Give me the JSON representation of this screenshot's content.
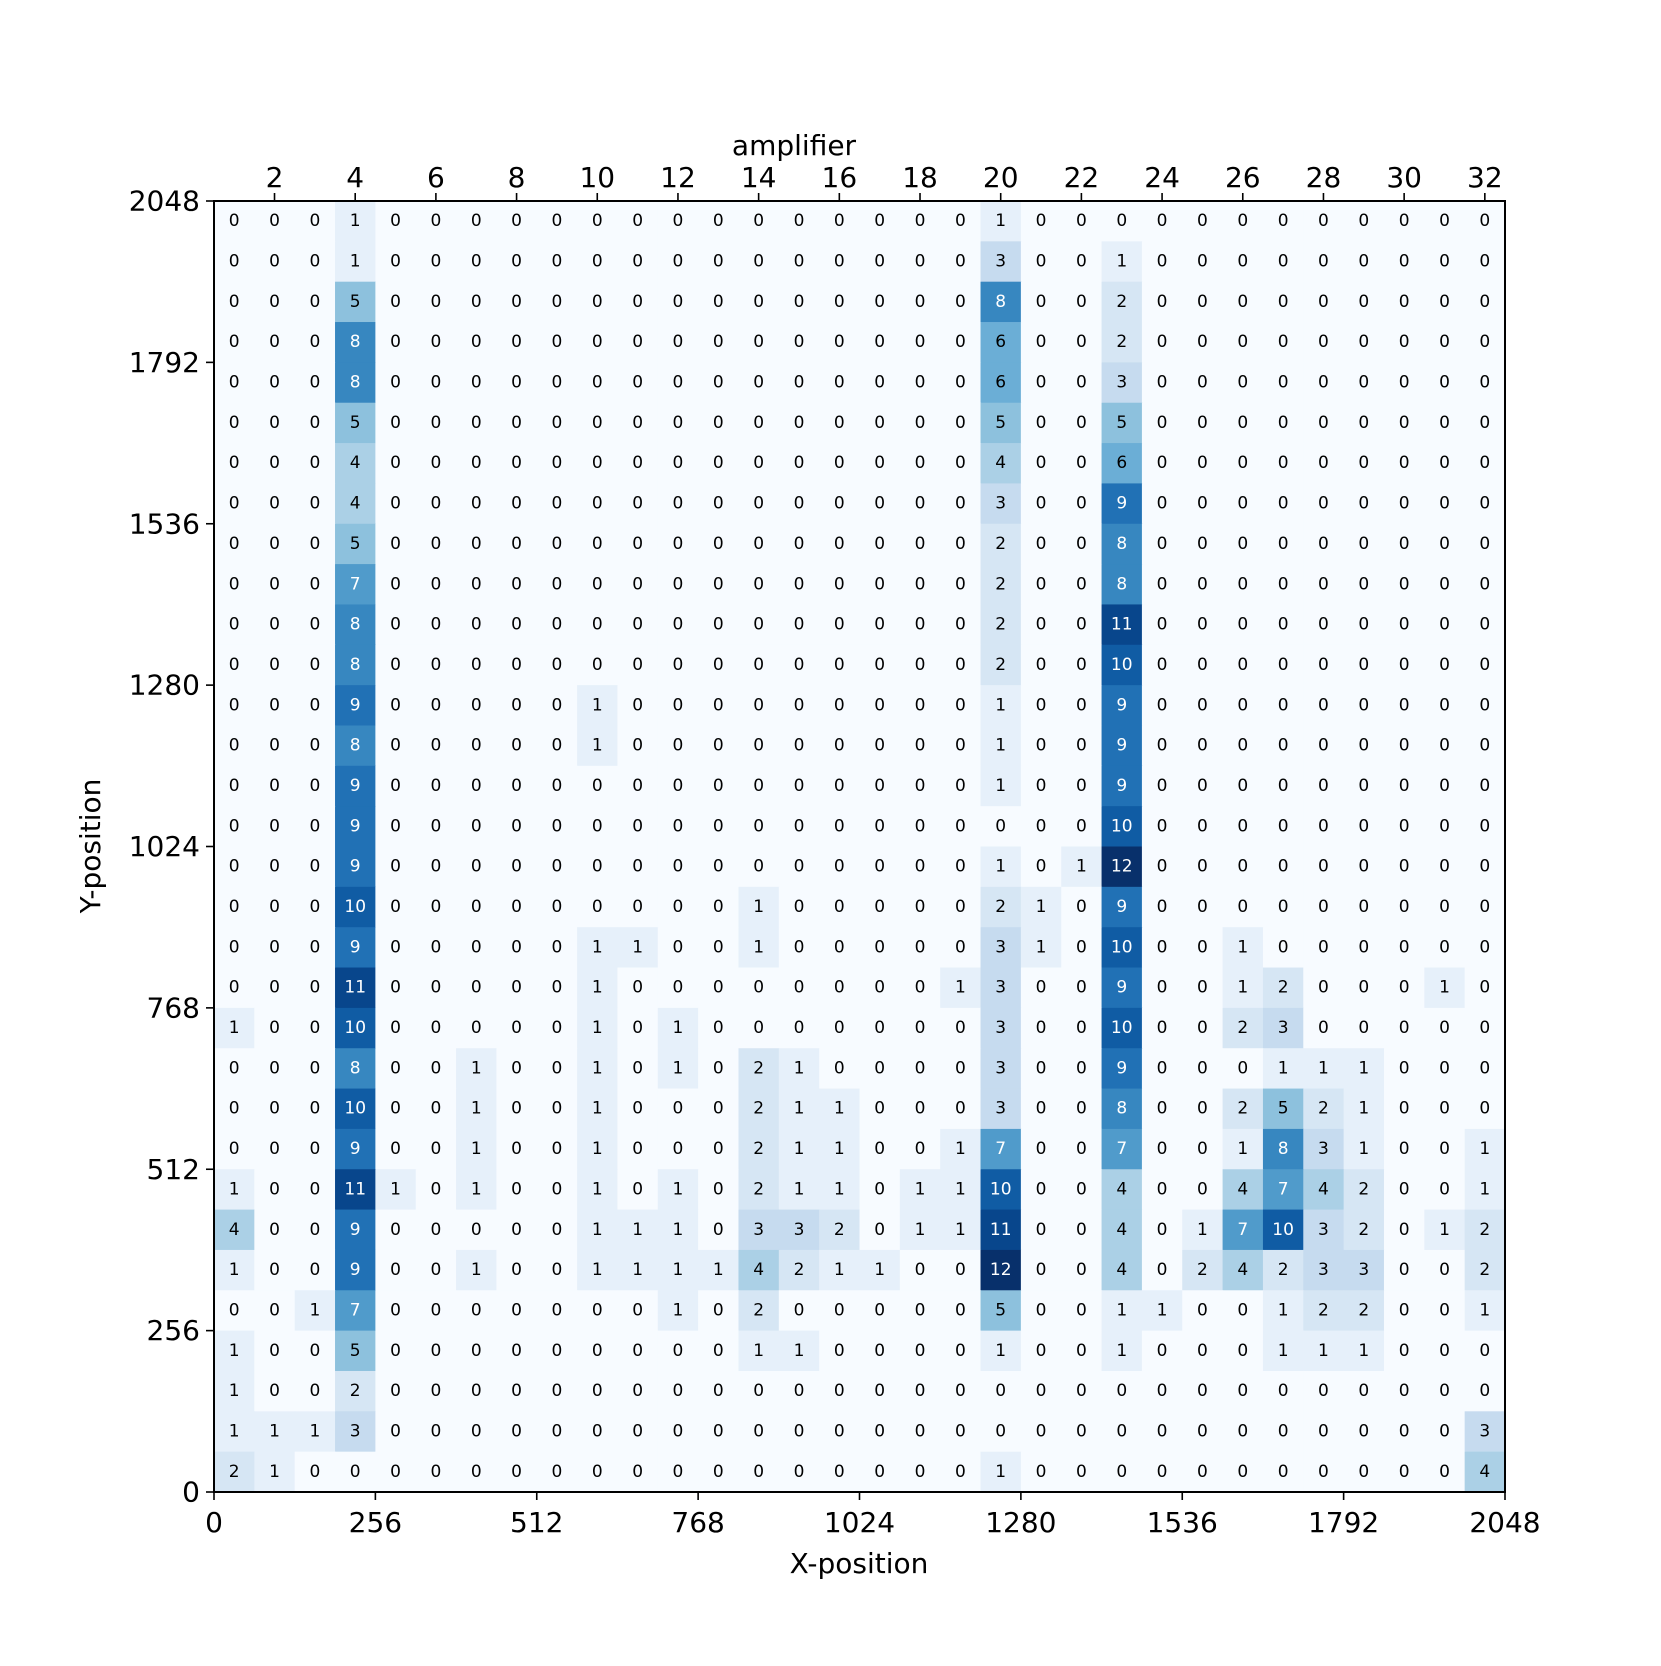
{
  "chart_data": {
    "type": "heatmap",
    "title": "",
    "top_axis_label": "amplifier",
    "xlabel": "X-position",
    "ylabel": "Y-position",
    "xlim": [
      0,
      2048
    ],
    "ylim": [
      0,
      2048
    ],
    "x_ticks": [
      "0",
      "256",
      "512",
      "768",
      "1024",
      "1280",
      "1536",
      "1792",
      "2048"
    ],
    "y_ticks": [
      "0",
      "256",
      "512",
      "768",
      "1024",
      "1280",
      "1536",
      "1792",
      "2048"
    ],
    "top_ticks": [
      "2",
      "4",
      "6",
      "8",
      "10",
      "12",
      "14",
      "16",
      "18",
      "20",
      "22",
      "24",
      "26",
      "28",
      "30",
      "32"
    ],
    "colormap": "Blues",
    "grid": false,
    "n_cols": 32,
    "n_rows": 32,
    "rows_top_to_bottom": [
      [
        0,
        0,
        0,
        1,
        0,
        0,
        0,
        0,
        0,
        0,
        0,
        0,
        0,
        0,
        0,
        0,
        0,
        0,
        0,
        1,
        0,
        0,
        0,
        0,
        0,
        0,
        0,
        0,
        0,
        0,
        0,
        0
      ],
      [
        0,
        0,
        0,
        1,
        0,
        0,
        0,
        0,
        0,
        0,
        0,
        0,
        0,
        0,
        0,
        0,
        0,
        0,
        0,
        3,
        0,
        0,
        1,
        0,
        0,
        0,
        0,
        0,
        0,
        0,
        0,
        0
      ],
      [
        0,
        0,
        0,
        5,
        0,
        0,
        0,
        0,
        0,
        0,
        0,
        0,
        0,
        0,
        0,
        0,
        0,
        0,
        0,
        8,
        0,
        0,
        2,
        0,
        0,
        0,
        0,
        0,
        0,
        0,
        0,
        0
      ],
      [
        0,
        0,
        0,
        8,
        0,
        0,
        0,
        0,
        0,
        0,
        0,
        0,
        0,
        0,
        0,
        0,
        0,
        0,
        0,
        6,
        0,
        0,
        2,
        0,
        0,
        0,
        0,
        0,
        0,
        0,
        0,
        0
      ],
      [
        0,
        0,
        0,
        8,
        0,
        0,
        0,
        0,
        0,
        0,
        0,
        0,
        0,
        0,
        0,
        0,
        0,
        0,
        0,
        6,
        0,
        0,
        3,
        0,
        0,
        0,
        0,
        0,
        0,
        0,
        0,
        0
      ],
      [
        0,
        0,
        0,
        5,
        0,
        0,
        0,
        0,
        0,
        0,
        0,
        0,
        0,
        0,
        0,
        0,
        0,
        0,
        0,
        5,
        0,
        0,
        5,
        0,
        0,
        0,
        0,
        0,
        0,
        0,
        0,
        0
      ],
      [
        0,
        0,
        0,
        4,
        0,
        0,
        0,
        0,
        0,
        0,
        0,
        0,
        0,
        0,
        0,
        0,
        0,
        0,
        0,
        4,
        0,
        0,
        6,
        0,
        0,
        0,
        0,
        0,
        0,
        0,
        0,
        0
      ],
      [
        0,
        0,
        0,
        4,
        0,
        0,
        0,
        0,
        0,
        0,
        0,
        0,
        0,
        0,
        0,
        0,
        0,
        0,
        0,
        3,
        0,
        0,
        9,
        0,
        0,
        0,
        0,
        0,
        0,
        0,
        0,
        0
      ],
      [
        0,
        0,
        0,
        5,
        0,
        0,
        0,
        0,
        0,
        0,
        0,
        0,
        0,
        0,
        0,
        0,
        0,
        0,
        0,
        2,
        0,
        0,
        8,
        0,
        0,
        0,
        0,
        0,
        0,
        0,
        0,
        0
      ],
      [
        0,
        0,
        0,
        7,
        0,
        0,
        0,
        0,
        0,
        0,
        0,
        0,
        0,
        0,
        0,
        0,
        0,
        0,
        0,
        2,
        0,
        0,
        8,
        0,
        0,
        0,
        0,
        0,
        0,
        0,
        0,
        0
      ],
      [
        0,
        0,
        0,
        8,
        0,
        0,
        0,
        0,
        0,
        0,
        0,
        0,
        0,
        0,
        0,
        0,
        0,
        0,
        0,
        2,
        0,
        0,
        11,
        0,
        0,
        0,
        0,
        0,
        0,
        0,
        0,
        0
      ],
      [
        0,
        0,
        0,
        8,
        0,
        0,
        0,
        0,
        0,
        0,
        0,
        0,
        0,
        0,
        0,
        0,
        0,
        0,
        0,
        2,
        0,
        0,
        10,
        0,
        0,
        0,
        0,
        0,
        0,
        0,
        0,
        0
      ],
      [
        0,
        0,
        0,
        9,
        0,
        0,
        0,
        0,
        0,
        1,
        0,
        0,
        0,
        0,
        0,
        0,
        0,
        0,
        0,
        1,
        0,
        0,
        9,
        0,
        0,
        0,
        0,
        0,
        0,
        0,
        0,
        0
      ],
      [
        0,
        0,
        0,
        8,
        0,
        0,
        0,
        0,
        0,
        1,
        0,
        0,
        0,
        0,
        0,
        0,
        0,
        0,
        0,
        1,
        0,
        0,
        9,
        0,
        0,
        0,
        0,
        0,
        0,
        0,
        0,
        0
      ],
      [
        0,
        0,
        0,
        9,
        0,
        0,
        0,
        0,
        0,
        0,
        0,
        0,
        0,
        0,
        0,
        0,
        0,
        0,
        0,
        1,
        0,
        0,
        9,
        0,
        0,
        0,
        0,
        0,
        0,
        0,
        0,
        0
      ],
      [
        0,
        0,
        0,
        9,
        0,
        0,
        0,
        0,
        0,
        0,
        0,
        0,
        0,
        0,
        0,
        0,
        0,
        0,
        0,
        0,
        0,
        0,
        10,
        0,
        0,
        0,
        0,
        0,
        0,
        0,
        0,
        0
      ],
      [
        0,
        0,
        0,
        9,
        0,
        0,
        0,
        0,
        0,
        0,
        0,
        0,
        0,
        0,
        0,
        0,
        0,
        0,
        0,
        1,
        0,
        1,
        12,
        0,
        0,
        0,
        0,
        0,
        0,
        0,
        0,
        0
      ],
      [
        0,
        0,
        0,
        10,
        0,
        0,
        0,
        0,
        0,
        0,
        0,
        0,
        0,
        1,
        0,
        0,
        0,
        0,
        0,
        2,
        1,
        0,
        9,
        0,
        0,
        0,
        0,
        0,
        0,
        0,
        0,
        0
      ],
      [
        0,
        0,
        0,
        9,
        0,
        0,
        0,
        0,
        0,
        1,
        1,
        0,
        0,
        1,
        0,
        0,
        0,
        0,
        0,
        3,
        1,
        0,
        10,
        0,
        0,
        1,
        0,
        0,
        0,
        0,
        0,
        0
      ],
      [
        0,
        0,
        0,
        11,
        0,
        0,
        0,
        0,
        0,
        1,
        0,
        0,
        0,
        0,
        0,
        0,
        0,
        0,
        1,
        3,
        0,
        0,
        9,
        0,
        0,
        1,
        2,
        0,
        0,
        0,
        1,
        0
      ],
      [
        1,
        0,
        0,
        10,
        0,
        0,
        0,
        0,
        0,
        1,
        0,
        1,
        0,
        0,
        0,
        0,
        0,
        0,
        0,
        3,
        0,
        0,
        10,
        0,
        0,
        2,
        3,
        0,
        0,
        0,
        0,
        0
      ],
      [
        0,
        0,
        0,
        8,
        0,
        0,
        1,
        0,
        0,
        1,
        0,
        1,
        0,
        2,
        1,
        0,
        0,
        0,
        0,
        3,
        0,
        0,
        9,
        0,
        0,
        0,
        1,
        1,
        1,
        0,
        0,
        0
      ],
      [
        0,
        0,
        0,
        10,
        0,
        0,
        1,
        0,
        0,
        1,
        0,
        0,
        0,
        2,
        1,
        1,
        0,
        0,
        0,
        3,
        0,
        0,
        8,
        0,
        0,
        2,
        5,
        2,
        1,
        0,
        0,
        0
      ],
      [
        0,
        0,
        0,
        9,
        0,
        0,
        1,
        0,
        0,
        1,
        0,
        0,
        0,
        2,
        1,
        1,
        0,
        0,
        1,
        7,
        0,
        0,
        7,
        0,
        0,
        1,
        8,
        3,
        1,
        0,
        0,
        1
      ],
      [
        1,
        0,
        0,
        11,
        1,
        0,
        1,
        0,
        0,
        1,
        0,
        1,
        0,
        2,
        1,
        1,
        0,
        1,
        1,
        10,
        0,
        0,
        4,
        0,
        0,
        4,
        7,
        4,
        2,
        0,
        0,
        1
      ],
      [
        4,
        0,
        0,
        9,
        0,
        0,
        0,
        0,
        0,
        1,
        1,
        1,
        0,
        3,
        3,
        2,
        0,
        1,
        1,
        11,
        0,
        0,
        4,
        0,
        1,
        7,
        10,
        3,
        2,
        0,
        1,
        2
      ],
      [
        1,
        0,
        0,
        9,
        0,
        0,
        1,
        0,
        0,
        1,
        1,
        1,
        1,
        4,
        2,
        1,
        1,
        0,
        0,
        12,
        0,
        0,
        4,
        0,
        2,
        4,
        2,
        3,
        3,
        0,
        0,
        2
      ],
      [
        0,
        0,
        1,
        7,
        0,
        0,
        0,
        0,
        0,
        0,
        0,
        1,
        0,
        2,
        0,
        0,
        0,
        0,
        0,
        5,
        0,
        0,
        1,
        1,
        0,
        0,
        1,
        2,
        2,
        0,
        0,
        1
      ],
      [
        1,
        0,
        0,
        5,
        0,
        0,
        0,
        0,
        0,
        0,
        0,
        0,
        0,
        1,
        1,
        0,
        0,
        0,
        0,
        1,
        0,
        0,
        1,
        0,
        0,
        0,
        1,
        1,
        1,
        0,
        0,
        0
      ],
      [
        1,
        0,
        0,
        2,
        0,
        0,
        0,
        0,
        0,
        0,
        0,
        0,
        0,
        0,
        0,
        0,
        0,
        0,
        0,
        0,
        0,
        0,
        0,
        0,
        0,
        0,
        0,
        0,
        0,
        0,
        0,
        0
      ],
      [
        1,
        1,
        1,
        3,
        0,
        0,
        0,
        0,
        0,
        0,
        0,
        0,
        0,
        0,
        0,
        0,
        0,
        0,
        0,
        0,
        0,
        0,
        0,
        0,
        0,
        0,
        0,
        0,
        0,
        0,
        0,
        3
      ],
      [
        2,
        1,
        0,
        0,
        0,
        0,
        0,
        0,
        0,
        0,
        0,
        0,
        0,
        0,
        0,
        0,
        0,
        0,
        0,
        1,
        0,
        0,
        0,
        0,
        0,
        0,
        0,
        0,
        0,
        0,
        0,
        4
      ]
    ]
  }
}
